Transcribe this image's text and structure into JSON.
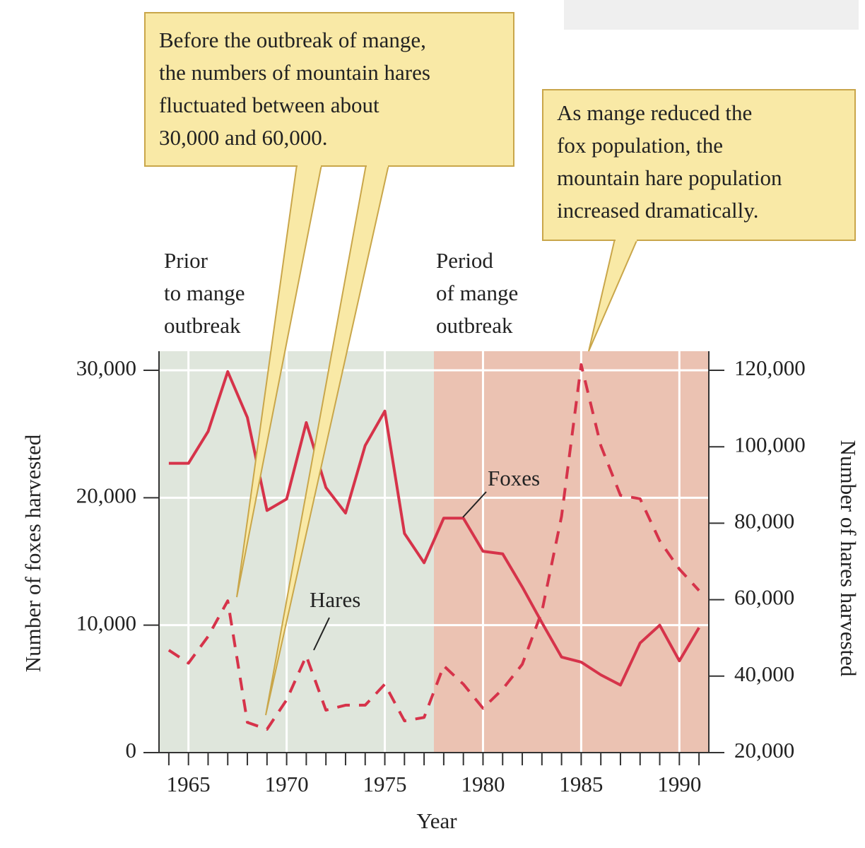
{
  "chart_data": {
    "type": "line",
    "x": [
      1964,
      1965,
      1966,
      1967,
      1968,
      1969,
      1970,
      1971,
      1972,
      1973,
      1974,
      1975,
      1976,
      1977,
      1978,
      1979,
      1980,
      1981,
      1982,
      1983,
      1984,
      1985,
      1986,
      1987,
      1988,
      1989,
      1990,
      1991
    ],
    "series": [
      {
        "name": "Foxes",
        "color": "#d6334a",
        "axis": "y",
        "style": "solid",
        "values": [
          22700,
          22700,
          25200,
          29900,
          26300,
          19000,
          19900,
          25900,
          20800,
          18800,
          24100,
          26800,
          17200,
          14900,
          18400,
          18400,
          15800,
          15600,
          13000,
          10200,
          7500,
          7100,
          6100,
          5300,
          8600,
          10000,
          7200,
          9800
        ]
      },
      {
        "name": "Hares",
        "color": "#d6334a",
        "axis": "y2",
        "style": "dashed",
        "values": [
          46800,
          43400,
          50400,
          59700,
          27900,
          26100,
          33800,
          45300,
          31100,
          32400,
          32400,
          37900,
          28300,
          29200,
          42700,
          37900,
          31600,
          36600,
          43100,
          56900,
          81800,
          121500,
          100300,
          87300,
          86400,
          75400,
          68000,
          62400
        ]
      }
    ],
    "xlabel": "Year",
    "ylabel": "Number of foxes harvested",
    "y2label": "Number of hares harvested",
    "xlim": [
      1963.5,
      1991.5
    ],
    "xticks": [
      1965,
      1970,
      1975,
      1980,
      1985,
      1990
    ],
    "minor_xticks": [
      1964,
      1965,
      1966,
      1967,
      1968,
      1969,
      1970,
      1971,
      1972,
      1973,
      1974,
      1975,
      1976,
      1977,
      1978,
      1979,
      1980,
      1981,
      1982,
      1983,
      1984,
      1985,
      1986,
      1987,
      1988,
      1989,
      1990,
      1991
    ],
    "ylim": [
      0,
      31500
    ],
    "yticks": [
      0,
      {
        "value": 10000,
        "label": "10,000"
      },
      {
        "value": 20000,
        "label": "20,000"
      },
      {
        "value": 30000,
        "label": "30,000"
      }
    ],
    "y2lim": [
      20000,
      125000
    ],
    "y2ticks": [
      {
        "value": 20000,
        "label": "20,000"
      },
      {
        "value": 40000,
        "label": "40,000"
      },
      {
        "value": 60000,
        "label": "60,000"
      },
      {
        "value": 80000,
        "label": "80,000"
      },
      {
        "value": 100000,
        "label": "100,000"
      },
      {
        "value": 120000,
        "label": "120,000"
      }
    ],
    "grid": true,
    "regions": [
      {
        "start": 1963.5,
        "end": 1977.5,
        "color": "#dfe6dc",
        "label_lines": [
          "Prior",
          "to mange",
          "outbreak"
        ]
      },
      {
        "start": 1977.5,
        "end": 1991.5,
        "color": "#ebc2b2",
        "label_lines": [
          "Period",
          "of mange",
          "outbreak"
        ]
      }
    ],
    "annotations": [
      {
        "lines": [
          "Before the outbreak of mange,",
          "the numbers of mountain hares",
          "fluctuated between about",
          "30,000 and 60,000."
        ]
      },
      {
        "lines": [
          "As mange reduced the",
          "fox population, the",
          "mountain hare population",
          "increased dramatically."
        ]
      }
    ]
  }
}
